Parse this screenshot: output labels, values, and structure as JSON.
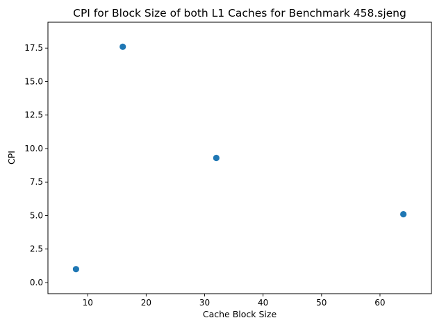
{
  "chart_data": {
    "type": "scatter",
    "title": "CPI for Block Size of both L1 Caches for Benchmark 458.sjeng",
    "xlabel": "Cache Block Size",
    "ylabel": "CPI",
    "x": [
      8,
      16,
      32,
      64
    ],
    "y": [
      1.0,
      17.6,
      9.3,
      5.1
    ],
    "xlim": [
      3.2,
      68.8
    ],
    "ylim": [
      -0.83,
      19.43
    ],
    "xticks": [
      10,
      20,
      30,
      40,
      50,
      60
    ],
    "xtick_labels": [
      "10",
      "20",
      "30",
      "40",
      "50",
      "60"
    ],
    "yticks": [
      0,
      2.5,
      5,
      7.5,
      10,
      12.5,
      15,
      17.5
    ],
    "ytick_labels": [
      "0.0",
      "2.5",
      "5.0",
      "7.5",
      "10.0",
      "12.5",
      "15.0",
      "17.5"
    ],
    "grid": false,
    "marker_color": "#1f77b4"
  }
}
